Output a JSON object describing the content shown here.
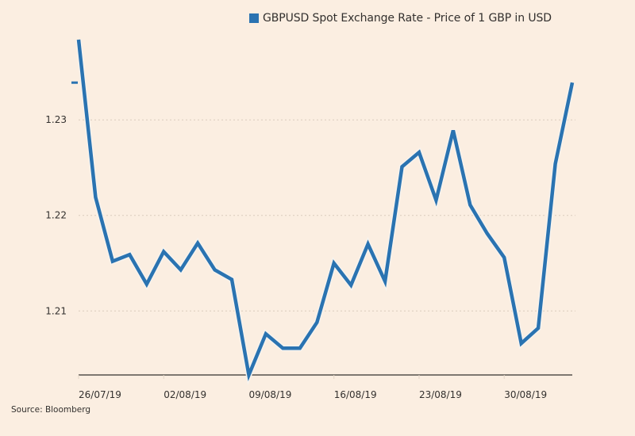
{
  "colors": {
    "background": "#fbeee1",
    "series": "#2a73b1",
    "axis": "#33302e",
    "grid": "#d9cbbd",
    "text": "#33302e"
  },
  "legend": {
    "label": "GBPUSD Spot Exchange Rate - Price of 1 GBP in USD"
  },
  "source": "Source: Bloomberg",
  "chart_data": {
    "type": "line",
    "title": "",
    "xlabel": "",
    "ylabel": "",
    "ylim": [
      1.2033,
      1.2384
    ],
    "grid": true,
    "legend_position": "top-center",
    "yticks": [
      1.21,
      1.22,
      1.23
    ],
    "ytick_labels": [
      "1.21",
      "1.22",
      "1.23"
    ],
    "xtick_labels": [
      "26/07/19",
      "02/08/19",
      "09/08/19",
      "16/08/19",
      "23/08/19",
      "30/08/19"
    ],
    "xtick_indices": [
      0,
      5,
      10,
      15,
      20,
      25
    ],
    "last_value_marker": 1.2339,
    "x": [
      "26/07/19",
      "29/07/19",
      "30/07/19",
      "31/07/19",
      "01/08/19",
      "02/08/19",
      "05/08/19",
      "06/08/19",
      "07/08/19",
      "08/08/19",
      "09/08/19",
      "12/08/19",
      "13/08/19",
      "14/08/19",
      "15/08/19",
      "16/08/19",
      "19/08/19",
      "20/08/19",
      "21/08/19",
      "22/08/19",
      "23/08/19",
      "26/08/19",
      "27/08/19",
      "28/08/19",
      "29/08/19",
      "30/08/19",
      "02/09/19",
      "03/09/19",
      "04/09/19",
      "05/09/19"
    ],
    "series": [
      {
        "name": "GBPUSD Spot Exchange Rate - Price of 1 GBP in USD",
        "values": [
          1.2384,
          1.2219,
          1.2152,
          1.2159,
          1.2128,
          1.2162,
          1.2143,
          1.2171,
          1.2143,
          1.2133,
          1.2033,
          1.2076,
          1.2061,
          1.2061,
          1.2088,
          1.215,
          1.2127,
          1.217,
          1.2131,
          1.2251,
          1.2266,
          1.2216,
          1.2289,
          1.2211,
          1.2181,
          1.2156,
          1.2066,
          1.2082,
          1.2254,
          1.2339
        ]
      }
    ]
  }
}
